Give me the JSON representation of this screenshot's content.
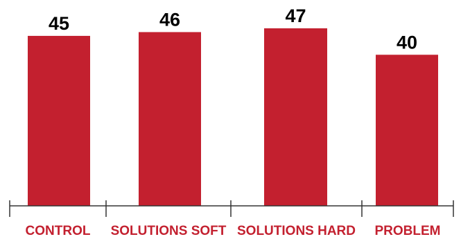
{
  "chart_data": {
    "type": "bar",
    "categories": [
      "CONTROL",
      "SOLUTIONS SOFT",
      "SOLUTIONS HARD",
      "PROBLEM"
    ],
    "values": [
      45,
      46,
      47,
      40
    ],
    "title": "",
    "xlabel": "",
    "ylabel": "",
    "ylim": [
      0,
      47
    ],
    "grid": false,
    "legend": "none",
    "bar_color": "#C3202F",
    "category_label_color": "#C3202F",
    "value_label_color": "#000000"
  }
}
